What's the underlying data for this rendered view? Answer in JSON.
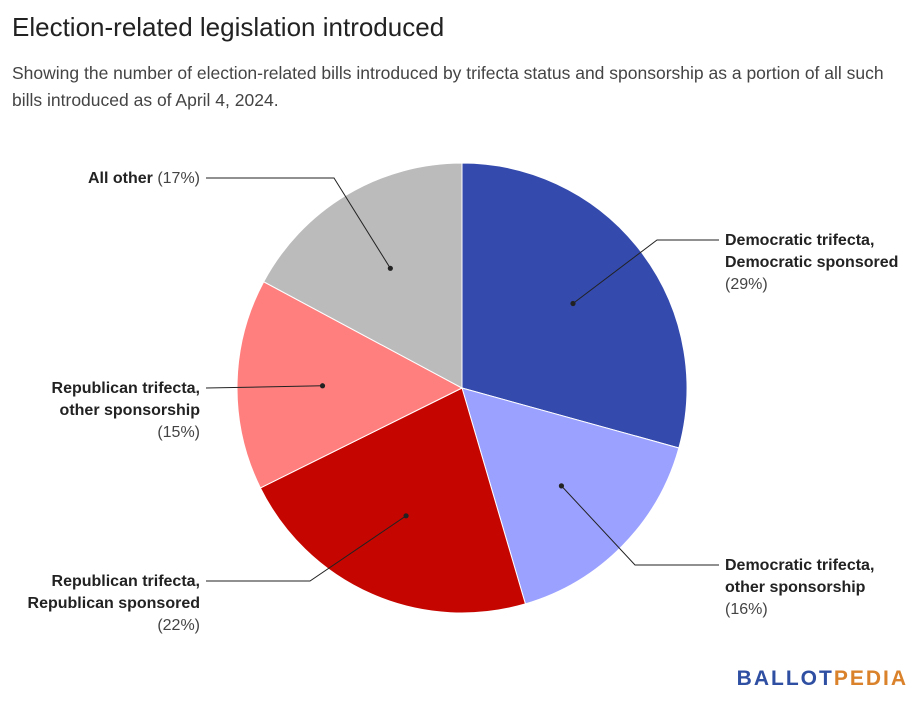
{
  "chart_data": {
    "type": "pie",
    "title": "Election-related legislation introduced",
    "subtitle": "Showing the number of election-related bills introduced by trifecta status and sponsorship as a portion of all such bills introduced as of April 4, 2024.",
    "slices": [
      {
        "label_lines": [
          "Democratic trifecta,",
          "Democratic sponsored"
        ],
        "pct_text": "(29%)",
        "value": 29,
        "color": "#344aad"
      },
      {
        "label_lines": [
          "Democratic trifecta,",
          "other sponsorship"
        ],
        "pct_text": "(16%)",
        "value": 16,
        "color": "#9ba1ff"
      },
      {
        "label_lines": [
          "Republican trifecta,",
          "Republican sponsored"
        ],
        "pct_text": "(22%)",
        "value": 22,
        "color": "#c50600"
      },
      {
        "label_lines": [
          "Republican trifecta,",
          "other sponsorship"
        ],
        "pct_text": "(15%)",
        "value": 15,
        "color": "#ff7f7f"
      },
      {
        "label_lines": [
          "All other"
        ],
        "pct_text": "(17%)",
        "value": 17,
        "color": "#bbbbbb"
      }
    ],
    "legend": "none"
  },
  "branding": {
    "part1": "BALLOT",
    "part2": "PEDIA",
    "color1": "#2f4fa3",
    "color2": "#d9822b"
  }
}
